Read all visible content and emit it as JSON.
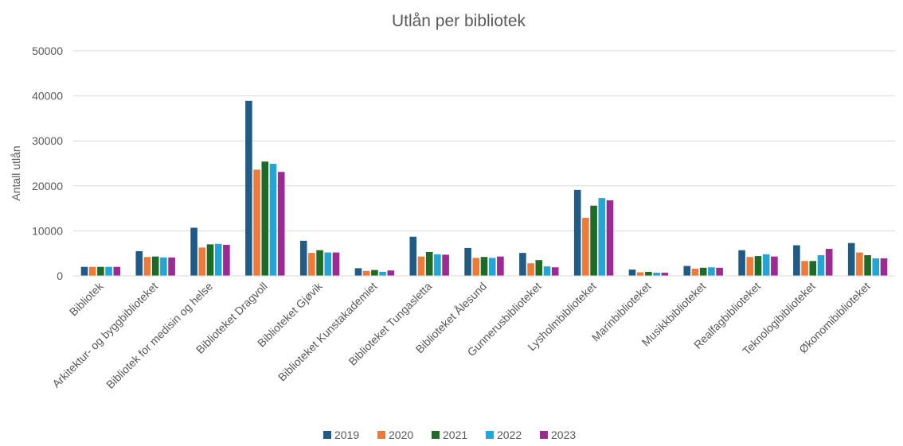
{
  "chart_data": {
    "type": "bar",
    "title": "Utlån per bibliotek",
    "xlabel": "",
    "ylabel": "Antall utlån",
    "ylim": [
      0,
      50000
    ],
    "yticks": [
      0,
      10000,
      20000,
      30000,
      40000,
      50000
    ],
    "grid": true,
    "legend_position": "bottom",
    "categories": [
      "Bibliotek",
      "Arkitektur- og byggbiblioteket",
      "Bibliotek for medisin og helse",
      "Biblioteket Dragvoll",
      "Biblioteket Gjøvik",
      "Biblioteket Kunstakademiet",
      "Biblioteket Tungasletta",
      "Biblioteket Ålesund",
      "Gunnerusbiblioteket",
      "Lysholmbiblioteket",
      "Marinbiblioteket",
      "Musikkbiblioteket",
      "Realfagbiblioteket",
      "Teknologibiblioteket",
      "Økonomibiblioteket"
    ],
    "series": [
      {
        "name": "2019",
        "color": "#1f5b86",
        "values": [
          2000,
          5500,
          10700,
          38900,
          7800,
          1700,
          8700,
          6200,
          5100,
          19100,
          1400,
          2200,
          5700,
          6800,
          7300
        ]
      },
      {
        "name": "2020",
        "color": "#ee7a3a",
        "values": [
          2000,
          4200,
          6300,
          23600,
          5100,
          1100,
          4300,
          4000,
          2800,
          12900,
          800,
          1600,
          4200,
          3300,
          5200
        ]
      },
      {
        "name": "2021",
        "color": "#1e6b27",
        "values": [
          2000,
          4300,
          7000,
          25400,
          5700,
          1300,
          5300,
          4200,
          3500,
          15600,
          900,
          1800,
          4400,
          3300,
          4600
        ]
      },
      {
        "name": "2022",
        "color": "#23a5d6",
        "values": [
          2000,
          4100,
          7100,
          24900,
          5200,
          900,
          4800,
          4000,
          2100,
          17300,
          700,
          1900,
          4800,
          4600,
          3900
        ]
      },
      {
        "name": "2023",
        "color": "#9c2a93",
        "values": [
          2000,
          4100,
          6900,
          23100,
          5200,
          1200,
          4700,
          4300,
          1900,
          16800,
          700,
          1800,
          4300,
          6000,
          3900
        ]
      }
    ]
  }
}
